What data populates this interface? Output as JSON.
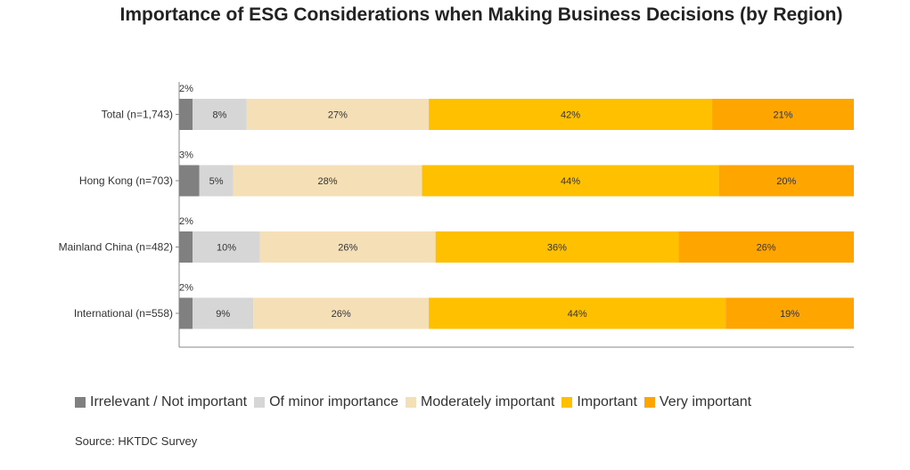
{
  "chart_data": {
    "type": "bar",
    "orientation": "horizontal",
    "stacked": true,
    "title": "Importance of ESG Considerations when Making Business Decisions (by Region)",
    "categories": [
      "Total (n=1,743)",
      "Hong Kong (n=703)",
      "Mainland China (n=482)",
      "International (n=558)"
    ],
    "series": [
      {
        "name": "Irrelevant / Not important",
        "color": "#808080",
        "values": [
          2,
          3,
          2,
          2
        ],
        "labels": [
          "2%",
          "3%",
          "2%",
          "2%"
        ]
      },
      {
        "name": "Of minor importance",
        "color": "#d6d6d6",
        "values": [
          8,
          5,
          10,
          9
        ],
        "labels": [
          "8%",
          "5%",
          "10%",
          "9%"
        ]
      },
      {
        "name": "Moderately important",
        "color": "#f5dfb6",
        "values": [
          27,
          28,
          26,
          26
        ],
        "labels": [
          "27%",
          "28%",
          "26%",
          "26%"
        ]
      },
      {
        "name": "Important",
        "color": "#ffc000",
        "values": [
          42,
          44,
          36,
          44
        ],
        "labels": [
          "42%",
          "44%",
          "36%",
          "44%"
        ]
      },
      {
        "name": "Very important",
        "color": "#ffa500",
        "values": [
          21,
          20,
          26,
          19
        ],
        "labels": [
          "21%",
          "20%",
          "26%",
          "19%"
        ]
      }
    ],
    "legend_position": "bottom-left",
    "grid": false
  },
  "source": "Source: HKTDC Survey"
}
